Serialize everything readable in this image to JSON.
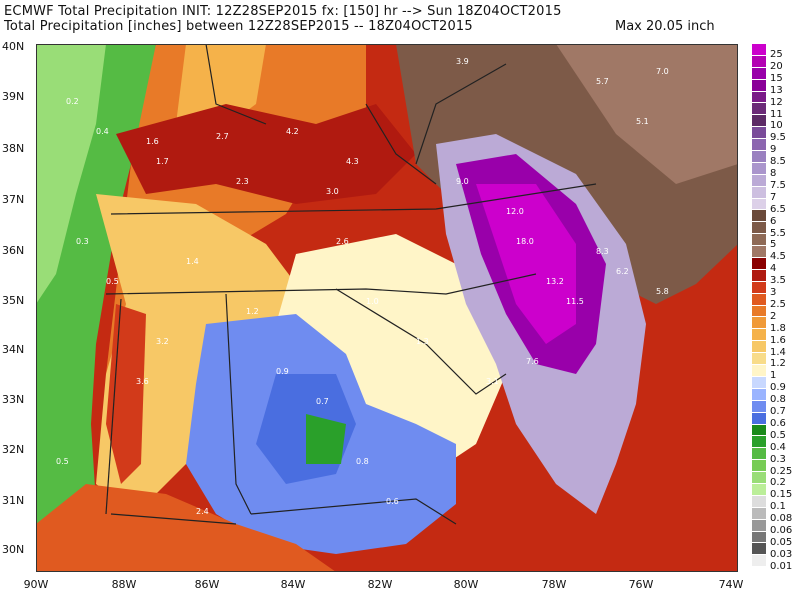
{
  "header": {
    "line1": "ECMWF Total Precipitation INIT: 12Z28SEP2015 fx: [150] hr --> Sun 18Z04OCT2015",
    "line2": "Total Precipitation [inches] between 12Z28SEP2015 -- 18Z04OCT2015",
    "max_label": "Max 20.05 inch"
  },
  "axes": {
    "lat_labels": [
      "40N",
      "39N",
      "38N",
      "37N",
      "36N",
      "35N",
      "34N",
      "33N",
      "32N",
      "31N",
      "30N"
    ],
    "lon_labels": [
      "90W",
      "88W",
      "86W",
      "84W",
      "82W",
      "80W",
      "78W",
      "76W",
      "74W"
    ]
  },
  "legend": {
    "levels": [
      "25",
      "20",
      "15",
      "13",
      "12",
      "11",
      "10",
      "9.5",
      "9",
      "8.5",
      "8",
      "7.5",
      "7",
      "6.5",
      "6",
      "5.5",
      "5",
      "4.5",
      "4",
      "3.5",
      "3",
      "2.5",
      "2",
      "1.8",
      "1.6",
      "1.4",
      "1.2",
      "1",
      "0.9",
      "0.8",
      "0.7",
      "0.6",
      "0.5",
      "0.4",
      "0.3",
      "0.25",
      "0.2",
      "0.15",
      "0.1",
      "0.08",
      "0.06",
      "0.05",
      "0.03",
      "0.01"
    ],
    "colors": [
      "#cc00cc",
      "#b300b3",
      "#9900aa",
      "#8a0099",
      "#7a1a88",
      "#6b2a78",
      "#5c2a66",
      "#7a4b9a",
      "#8c66b0",
      "#9a80c0",
      "#aa95cc",
      "#bbaad6",
      "#cdbfe0",
      "#dcd0e8",
      "#6b4a3a",
      "#7d5a48",
      "#8f6a56",
      "#a07866",
      "#8b0000",
      "#b01a10",
      "#d23a1a",
      "#e05a20",
      "#e87a28",
      "#f09a38",
      "#f5b24a",
      "#f7c866",
      "#f8dc8a",
      "#fff5c8",
      "#c8d8ff",
      "#9ab4ff",
      "#6f8cf0",
      "#4a6ee0",
      "#1a8a1a",
      "#2aa02a",
      "#55bb44",
      "#77cc55",
      "#99dd77",
      "#bbee99",
      "#dddddd",
      "#bbbbbb",
      "#999999",
      "#777777",
      "#555555",
      "#eeeeee"
    ]
  },
  "map_values": [
    {
      "t": "0.2"
    },
    {
      "t": "0.4"
    },
    {
      "t": "1.6"
    },
    {
      "t": "2.7"
    },
    {
      "t": "4.2"
    },
    {
      "t": "3.9"
    },
    {
      "t": "5.7"
    },
    {
      "t": "7.0"
    },
    {
      "t": "0.3"
    },
    {
      "t": "0.5"
    },
    {
      "t": "1.7"
    },
    {
      "t": "2.3"
    },
    {
      "t": "3.0"
    },
    {
      "t": "4.3"
    },
    {
      "t": "9.0"
    },
    {
      "t": "12.0"
    },
    {
      "t": "13.2"
    },
    {
      "t": "18.0"
    },
    {
      "t": "11.5"
    },
    {
      "t": "8.3"
    },
    {
      "t": "6.2"
    },
    {
      "t": "5.8"
    },
    {
      "t": "1.4"
    },
    {
      "t": "1.2"
    },
    {
      "t": "0.9"
    },
    {
      "t": "0.7"
    },
    {
      "t": "0.8"
    },
    {
      "t": "0.6"
    },
    {
      "t": "3.2"
    },
    {
      "t": "3.6"
    },
    {
      "t": "2.4"
    },
    {
      "t": "1.3"
    },
    {
      "t": "1.0"
    },
    {
      "t": "2.6"
    },
    {
      "t": "3.1"
    },
    {
      "t": "7.6"
    },
    {
      "t": "5.1"
    },
    {
      "t": "0.5"
    }
  ]
}
